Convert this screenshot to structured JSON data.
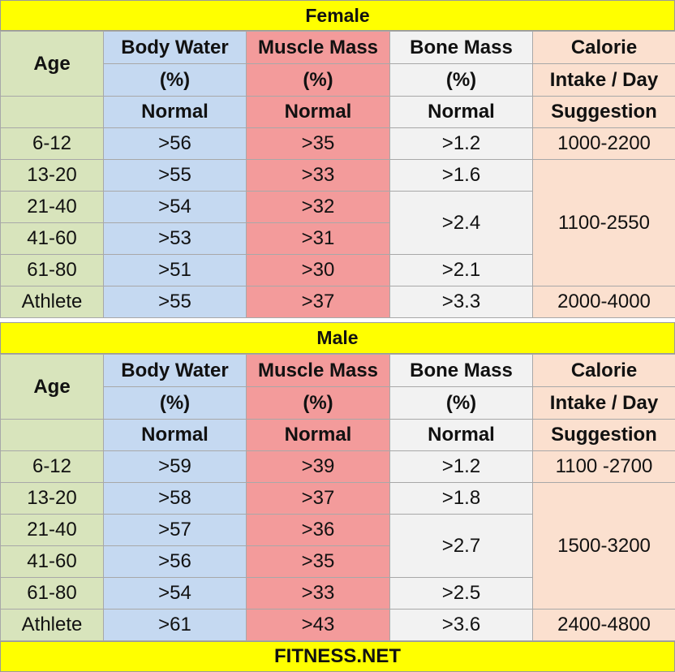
{
  "female": {
    "title": "Female",
    "headers": {
      "age": "Age",
      "water_1": "Body Water",
      "water_2": "(%)",
      "muscle_1": "Muscle Mass",
      "muscle_2": "(%)",
      "bone_1": "Bone Mass",
      "bone_2": "(%)",
      "cal_1": "Calorie",
      "cal_2": "Intake / Day"
    },
    "subheaders": {
      "water": "Normal",
      "muscle": "Normal",
      "bone": "Normal",
      "cal": "Suggestion"
    },
    "rows": [
      {
        "age": "6-12",
        "water": ">56",
        "muscle": ">35",
        "bone": ">1.2",
        "cal": "1000-2200"
      },
      {
        "age": "13-20",
        "water": ">55",
        "muscle": ">33",
        "bone": ">1.6",
        "cal": "1100-2550"
      },
      {
        "age": "21-40",
        "water": ">54",
        "muscle": ">32",
        "bone": ">2.4"
      },
      {
        "age": "41-60",
        "water": ">53",
        "muscle": ">31"
      },
      {
        "age": "61-80",
        "water": ">51",
        "muscle": ">30",
        "bone": ">2.1"
      },
      {
        "age": "Athlete",
        "water": ">55",
        "muscle": ">37",
        "bone": ">3.3",
        "cal": "2000-4000"
      }
    ]
  },
  "male": {
    "title": "Male",
    "headers": {
      "age": "Age",
      "water_1": "Body Water",
      "water_2": "(%)",
      "muscle_1": "Muscle Mass",
      "muscle_2": "(%)",
      "bone_1": "Bone Mass",
      "bone_2": "(%)",
      "cal_1": "Calorie",
      "cal_2": "Intake / Day"
    },
    "subheaders": {
      "water": "Normal",
      "muscle": "Normal",
      "bone": "Normal",
      "cal": "Suggestion"
    },
    "rows": [
      {
        "age": "6-12",
        "water": ">59",
        "muscle": ">39",
        "bone": ">1.2",
        "cal": "1100 -2700"
      },
      {
        "age": "13-20",
        "water": ">58",
        "muscle": ">37",
        "bone": ">1.8",
        "cal": "1500-3200"
      },
      {
        "age": "21-40",
        "water": ">57",
        "muscle": ">36",
        "bone": ">2.7"
      },
      {
        "age": "41-60",
        "water": ">56",
        "muscle": ">35"
      },
      {
        "age": "61-80",
        "water": ">54",
        "muscle": ">33",
        "bone": ">2.5"
      },
      {
        "age": "Athlete",
        "water": ">61",
        "muscle": ">43",
        "bone": ">3.6",
        "cal": "2400-4800"
      }
    ]
  },
  "footer": {
    "text": "FITNESS.NET"
  },
  "colors": {
    "banner": "#ffff00",
    "age_column": "#d8e4bc",
    "water_column": "#c5d9f1",
    "muscle_column": "#f39b9b",
    "bone_column": "#f2f2f2",
    "calorie_column": "#fbe0cf"
  }
}
